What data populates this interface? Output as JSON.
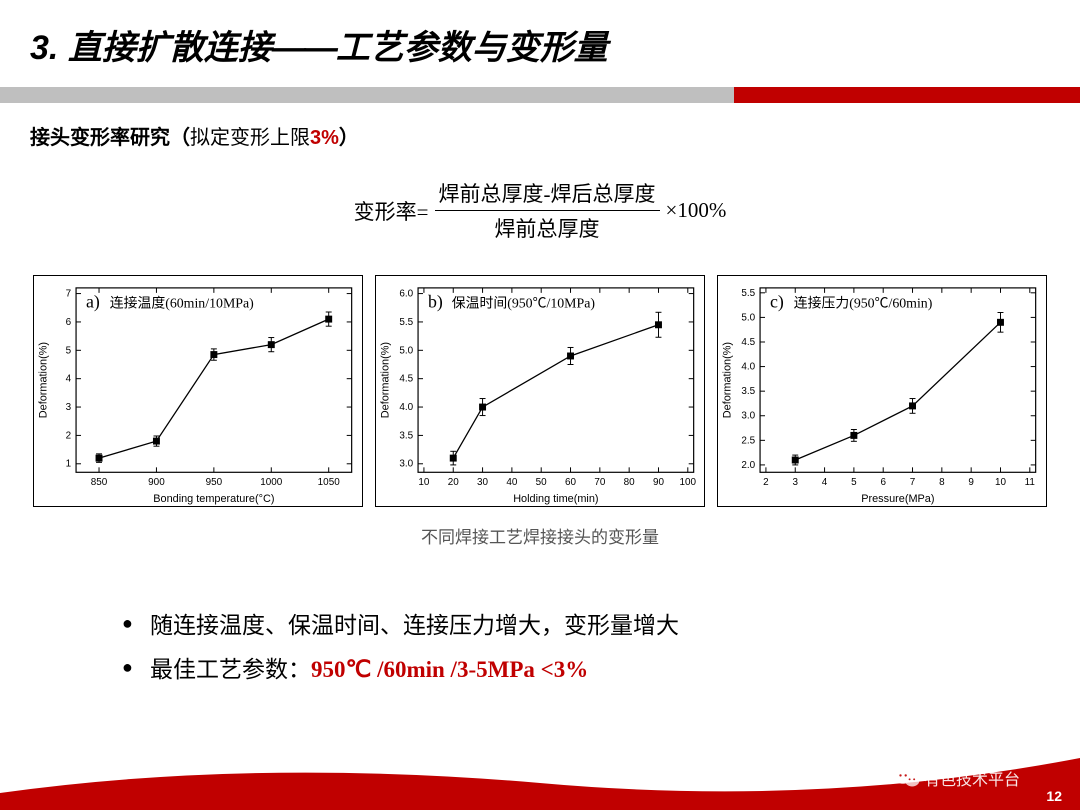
{
  "title": {
    "num": "3.",
    "main": "直接扩散连接",
    "dash": "——",
    "sub": "工艺参数与变形量"
  },
  "subtitle": {
    "text1": "接头变形率研究（",
    "text2": "拟定变形上限",
    "red": "3%",
    "text3": "）"
  },
  "formula": {
    "lhs": "变形率=",
    "num": "焊前总厚度-焊后总厚度",
    "den": "焊前总厚度",
    "rhs": "×100%"
  },
  "charts_caption": "不同焊接工艺焊接接头的变形量",
  "chartA": {
    "panel_label": "a)",
    "legend": "连接温度(60min/10MPa)",
    "xlabel": "Bonding temperature(°C)",
    "ylabel": "Deformation(%)",
    "xticks": [
      850,
      900,
      950,
      1000,
      1050
    ],
    "yticks": [
      1,
      2,
      3,
      4,
      5,
      6,
      7
    ],
    "xlim": [
      830,
      1070
    ],
    "ylim": [
      0.7,
      7.2
    ],
    "data": [
      {
        "x": 850,
        "y": 1.2,
        "err": 0.15
      },
      {
        "x": 900,
        "y": 1.8,
        "err": 0.18
      },
      {
        "x": 950,
        "y": 4.85,
        "err": 0.2
      },
      {
        "x": 1000,
        "y": 5.2,
        "err": 0.25
      },
      {
        "x": 1050,
        "y": 6.1,
        "err": 0.25
      }
    ]
  },
  "chartB": {
    "panel_label": "b)",
    "legend": "保温时间(950℃/10MPa)",
    "xlabel": "Holding time(min)",
    "ylabel": "Deformation(%)",
    "xticks": [
      10,
      20,
      30,
      40,
      50,
      60,
      70,
      80,
      90,
      100
    ],
    "yticks": [
      3.0,
      3.5,
      4.0,
      4.5,
      5.0,
      5.5,
      6.0
    ],
    "xlim": [
      8,
      102
    ],
    "ylim": [
      2.85,
      6.1
    ],
    "data": [
      {
        "x": 20,
        "y": 3.1,
        "err": 0.12
      },
      {
        "x": 30,
        "y": 4.0,
        "err": 0.15
      },
      {
        "x": 60,
        "y": 4.9,
        "err": 0.15
      },
      {
        "x": 90,
        "y": 5.45,
        "err": 0.22
      }
    ]
  },
  "chartC": {
    "panel_label": "c)",
    "legend": "连接压力(950℃/60min)",
    "xlabel": "Pressure(MPa)",
    "ylabel": "Deformation(%)",
    "xticks": [
      2,
      3,
      4,
      5,
      6,
      7,
      8,
      9,
      10,
      11
    ],
    "yticks": [
      2.0,
      2.5,
      3.0,
      3.5,
      4.0,
      4.5,
      5.0,
      5.5
    ],
    "xlim": [
      1.8,
      11.2
    ],
    "ylim": [
      1.85,
      5.6
    ],
    "data": [
      {
        "x": 3,
        "y": 2.1,
        "err": 0.1
      },
      {
        "x": 5,
        "y": 2.6,
        "err": 0.12
      },
      {
        "x": 7,
        "y": 3.2,
        "err": 0.15
      },
      {
        "x": 10,
        "y": 4.9,
        "err": 0.2
      }
    ]
  },
  "bullets": [
    {
      "text": "随连接温度、保温时间、连接压力增大，变形量增大"
    },
    {
      "text": "最佳工艺参数：",
      "red": "950℃ /60min /3-5MPa  <3%"
    }
  ],
  "watermark": "有色技术平台",
  "page_number": "12",
  "colors": {
    "red": "#c00000",
    "gray_bar": "#bfbfbf",
    "marker": "#000000"
  }
}
